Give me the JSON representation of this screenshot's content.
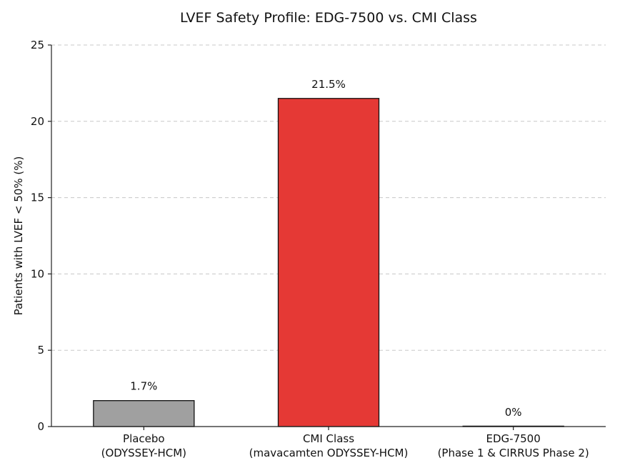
{
  "chart_data": {
    "type": "bar",
    "title": "LVEF Safety Profile: EDG-7500 vs. CMI Class",
    "xlabel": "",
    "ylabel": "Patients with LVEF < 50% (%)",
    "ylim": [
      0,
      25
    ],
    "yticks": [
      0,
      5,
      10,
      15,
      20,
      25
    ],
    "grid": true,
    "categories": [
      {
        "line1": "Placebo",
        "line2": "(ODYSSEY-HCM)"
      },
      {
        "line1": "CMI Class",
        "line2": "(mavacamten ODYSSEY-HCM)"
      },
      {
        "line1": "EDG-7500",
        "line2": "(Phase 1 & CIRRUS Phase 2)"
      }
    ],
    "values": [
      1.7,
      21.5,
      0
    ],
    "data_labels": [
      "1.7%",
      "21.5%",
      "0%"
    ],
    "colors": [
      "#a0a0a0",
      "#e53935",
      "#ffffff"
    ]
  }
}
